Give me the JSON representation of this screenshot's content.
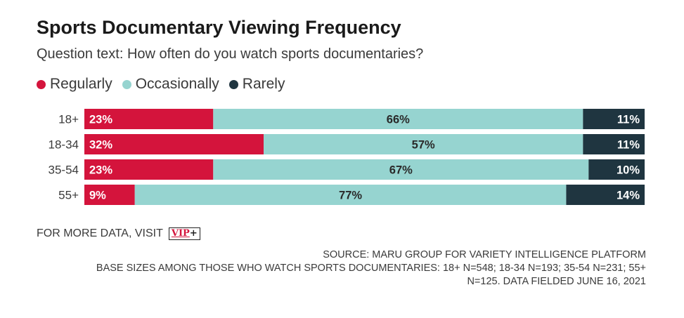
{
  "header": {
    "title": "Sports Documentary Viewing Frequency",
    "subtitle": "Question text: How often do you watch sports documentaries?"
  },
  "chart_data": {
    "type": "bar",
    "orientation": "horizontal",
    "stacked": true,
    "normalized": true,
    "categories": [
      "18+",
      "18-34",
      "35-54",
      "55+"
    ],
    "series": [
      {
        "name": "Regularly",
        "values": [
          23,
          32,
          23,
          9
        ],
        "labels": [
          "23%",
          "32%",
          "23%",
          "9%"
        ],
        "color": "#d4143c",
        "label_color": "#ffffff"
      },
      {
        "name": "Occasionally",
        "values": [
          66,
          57,
          67,
          77
        ],
        "labels": [
          "66%",
          "57%",
          "67%",
          "77%"
        ],
        "color": "#96d4d0",
        "label_color": "#2a2a2a"
      },
      {
        "name": "Rarely",
        "values": [
          11,
          11,
          10,
          14
        ],
        "labels": [
          "11%",
          "11%",
          "10%",
          "14%"
        ],
        "color": "#1f3540",
        "label_color": "#ffffff"
      }
    ],
    "xlim": [
      0,
      100
    ],
    "legend_position": "top-left",
    "grid": false
  },
  "footer": {
    "more_data_text": "FOR MORE DATA, VISIT",
    "logo_text": "VIP",
    "logo_plus": "+",
    "source_lines": [
      "SOURCE: MARU GROUP FOR VARIETY INTELLIGENCE PLATFORM",
      "BASE SIZES AMONG THOSE WHO WATCH SPORTS DOCUMENTARIES: 18+ N=548; 18-34 N=193; 35-54 N=231; 55+",
      "N=125. DATA FIELDED JUNE 16, 2021"
    ]
  }
}
